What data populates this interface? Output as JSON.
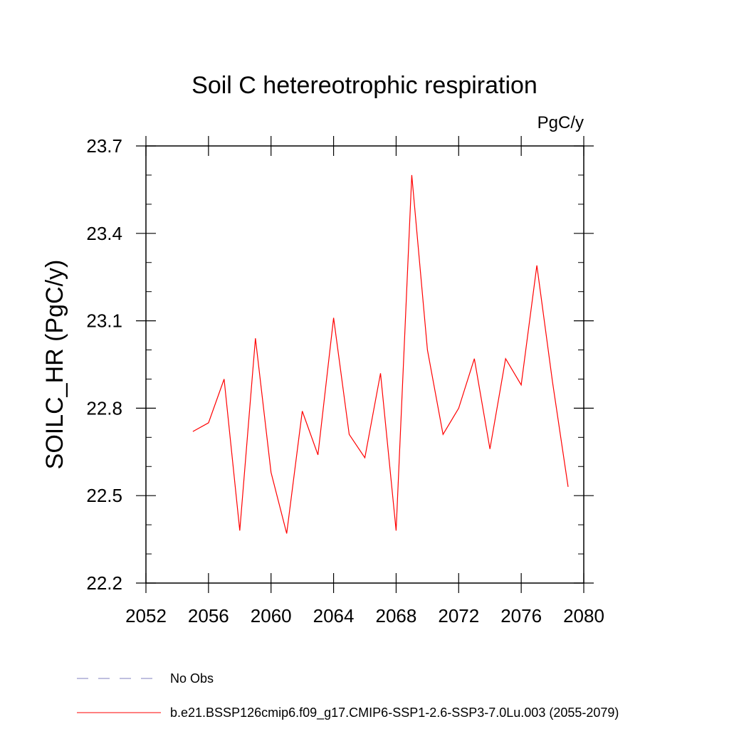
{
  "chart_data": {
    "type": "line",
    "title": "Soil C hetereotrophic respiration",
    "units": "PgC/y",
    "xlabel": "",
    "ylabel": "SOILC_HR  (PgC/y)",
    "xlim": [
      2052,
      2080
    ],
    "ylim": [
      22.2,
      23.7
    ],
    "x_ticks": [
      2052,
      2056,
      2060,
      2064,
      2068,
      2072,
      2076,
      2080
    ],
    "y_ticks": [
      22.2,
      22.5,
      22.8,
      23.1,
      23.4,
      23.7
    ],
    "y_tick_labels": [
      "22.2",
      "22.5",
      "22.8",
      "23.1",
      "23.4",
      "23.7"
    ],
    "x": [
      2055,
      2056,
      2057,
      2058,
      2059,
      2060,
      2061,
      2062,
      2063,
      2064,
      2065,
      2066,
      2067,
      2068,
      2069,
      2070,
      2071,
      2072,
      2073,
      2074,
      2075,
      2076,
      2077,
      2078,
      2079
    ],
    "series": [
      {
        "name": "b.e21.BSSP126cmip6.f09_g17.CMIP6-SSP1-2.6-SSP3-7.0Lu.003 (2055-2079)",
        "color": "#ff0000",
        "values": [
          22.72,
          22.75,
          22.9,
          22.38,
          23.04,
          22.58,
          22.37,
          22.79,
          22.64,
          23.11,
          22.71,
          22.63,
          22.92,
          22.38,
          23.6,
          23.0,
          22.71,
          22.8,
          22.97,
          22.66,
          22.97,
          22.88,
          23.29,
          22.89,
          22.53
        ]
      }
    ],
    "legend": [
      {
        "label": "No Obs",
        "color": "#7f7fbf",
        "style": "dashed"
      },
      {
        "label": "b.e21.BSSP126cmip6.f09_g17.CMIP6-SSP1-2.6-SSP3-7.0Lu.003 (2055-2079)",
        "color": "#ff0000",
        "style": "solid"
      }
    ],
    "grid": false,
    "legend_position": "bottom"
  }
}
